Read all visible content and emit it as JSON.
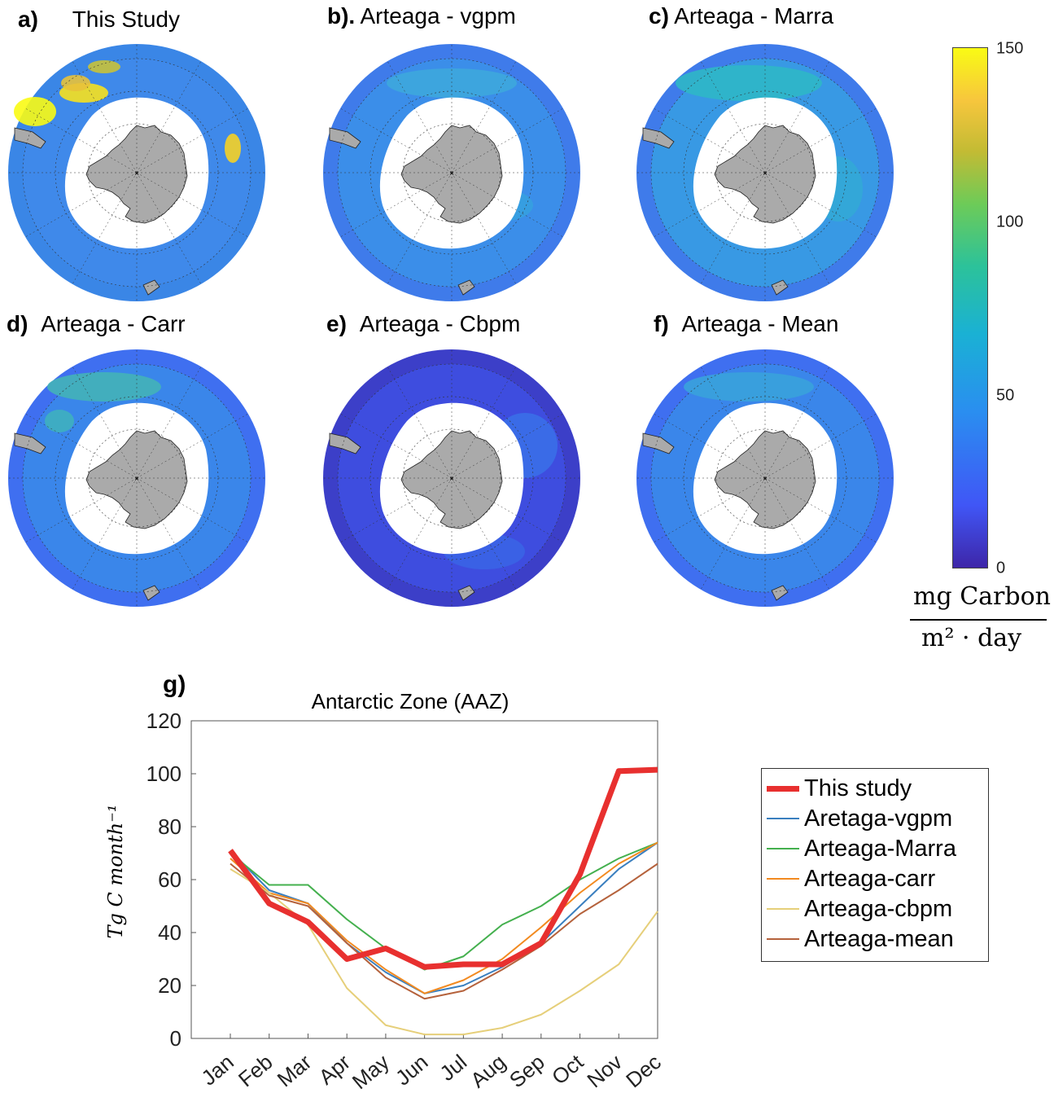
{
  "panels": [
    {
      "letter": "a)",
      "title": "This Study"
    },
    {
      "letter": "b).",
      "title": "Arteaga - vgpm"
    },
    {
      "letter": "c)",
      "title": "Arteaga - Marra"
    },
    {
      "letter": "d)",
      "title": "Arteaga - Carr"
    },
    {
      "letter": "e)",
      "title": "Arteaga - Cbpm"
    },
    {
      "letter": "f)",
      "title": "Arteaga - Mean"
    }
  ],
  "colorbar": {
    "ticks": [
      "150",
      "100",
      "50",
      "0"
    ],
    "min": 0,
    "max": 150,
    "unit_numerator": "mg Carbon",
    "unit_denominator": "m² · day",
    "colors": [
      "#3e26a8",
      "#4056f6",
      "#2a8ef0",
      "#1ab1d4",
      "#2cc29a",
      "#6dcb58",
      "#c2bb34",
      "#f7c63d",
      "#f9fb14"
    ]
  },
  "chart_data": {
    "type": "line",
    "panel_label": "g)",
    "title": "Antarctic Zone (AAZ)",
    "ylabel": "Tg C month⁻¹",
    "xlabel": "",
    "categories": [
      "Jan",
      "Feb",
      "Mar",
      "Apr",
      "May",
      "Jun",
      "Jul",
      "Aug",
      "Sep",
      "Oct",
      "Nov",
      "Dec"
    ],
    "ylim": [
      0,
      120
    ],
    "yticks": [
      "0",
      "20",
      "40",
      "60",
      "80",
      "100",
      "120"
    ],
    "legend_position": "right",
    "series": [
      {
        "name": "This study",
        "color": "#e8302f",
        "width": 7,
        "values": [
          71,
          51,
          44,
          30,
          34,
          27,
          28,
          28,
          36,
          62,
          101,
          101.5
        ]
      },
      {
        "name": "Aretaga-vgpm",
        "color": "#3a7fbf",
        "width": 2,
        "values": [
          71,
          56,
          51,
          36,
          25,
          17,
          20,
          27,
          36,
          50,
          64,
          74
        ]
      },
      {
        "name": "Arteaga-Marra",
        "color": "#44b04e",
        "width": 2,
        "values": [
          70,
          58,
          58,
          45,
          34,
          26,
          31,
          43,
          50,
          60,
          68,
          74
        ]
      },
      {
        "name": "Arteaga-carr",
        "color": "#f28a20",
        "width": 2,
        "values": [
          68,
          55,
          51,
          37,
          26,
          17,
          22,
          30,
          42,
          55,
          66,
          74
        ]
      },
      {
        "name": "Arteaga-cbpm",
        "color": "#e6cf7a",
        "width": 2,
        "values": [
          64,
          55,
          43,
          19,
          5,
          1.5,
          1.5,
          4,
          9,
          18,
          28,
          48
        ]
      },
      {
        "name": "Arteaga-mean",
        "color": "#b5623c",
        "width": 2,
        "values": [
          66,
          54,
          50,
          36,
          23,
          15,
          18,
          26,
          35,
          47,
          56,
          66
        ]
      }
    ]
  }
}
